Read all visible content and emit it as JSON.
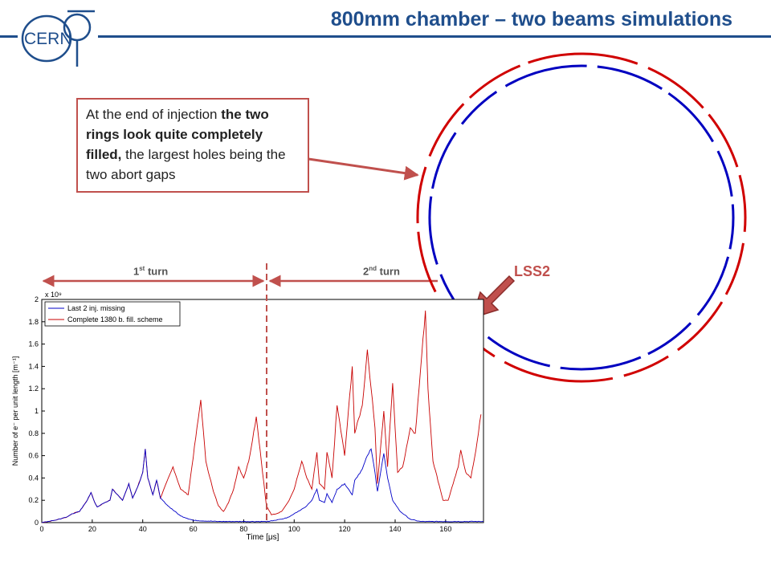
{
  "title": "800mm chamber – two beams simulations",
  "logo_text": "CERN",
  "callout": {
    "p1": "At the end of injection ",
    "b1": "the two rings look quite completely filled,",
    "p2": " the largest holes being the two abort gaps"
  },
  "turn1": {
    "pre": "1",
    "sup": "st",
    "post": " turn"
  },
  "turn2": {
    "pre": "2",
    "sup": "nd",
    "post": " turn"
  },
  "lss2": "LSS2",
  "colors": {
    "title": "#1f4e8c",
    "accent": "#c0504d",
    "blue": "#0000c8",
    "red": "#c80000"
  },
  "chart_data": {
    "type": "line",
    "xlabel": "Time [μs]",
    "ylabel": "Number of e⁻ per unit length [m⁻¹]",
    "y_multiplier": "x 10⁹",
    "xlim": [
      0,
      175
    ],
    "ylim": [
      0,
      2
    ],
    "xticks": [
      0,
      20,
      40,
      60,
      80,
      100,
      120,
      140,
      160
    ],
    "yticks": [
      0,
      0.2,
      0.4,
      0.6,
      0.8,
      1,
      1.2,
      1.4,
      1.6,
      1.8,
      2
    ],
    "grid": false,
    "legend_position": "top-left",
    "series": [
      {
        "name": "Last 2 inj. missing",
        "color": "#0000c8",
        "x": [
          0,
          5,
          10,
          12,
          15,
          18,
          19.5,
          21,
          22,
          25,
          27,
          28,
          32,
          33,
          34.5,
          36,
          38,
          40,
          41,
          42,
          44,
          45.5,
          47,
          50,
          55,
          60,
          70,
          80,
          90,
          92,
          95,
          98,
          100,
          103,
          105,
          107,
          109,
          110,
          112,
          113,
          115,
          117,
          120,
          123,
          124,
          127,
          129,
          130.5,
          132,
          133,
          135.5,
          137,
          139,
          142,
          146,
          150,
          160,
          175
        ],
        "y": [
          0,
          0.02,
          0.05,
          0.08,
          0.1,
          0.2,
          0.27,
          0.18,
          0.14,
          0.18,
          0.2,
          0.3,
          0.2,
          0.26,
          0.35,
          0.22,
          0.32,
          0.45,
          0.66,
          0.4,
          0.25,
          0.38,
          0.22,
          0.15,
          0.06,
          0.02,
          0.01,
          0.01,
          0.01,
          0.02,
          0.03,
          0.05,
          0.08,
          0.12,
          0.15,
          0.2,
          0.3,
          0.2,
          0.18,
          0.26,
          0.18,
          0.3,
          0.35,
          0.25,
          0.38,
          0.48,
          0.6,
          0.66,
          0.45,
          0.28,
          0.62,
          0.4,
          0.2,
          0.1,
          0.03,
          0.01,
          0.01,
          0.01
        ]
      },
      {
        "name": "Complete 1380 b. fill. scheme",
        "color": "#c80000",
        "x": [
          0,
          5,
          10,
          12,
          15,
          18,
          19.5,
          21,
          22,
          25,
          27,
          28,
          32,
          33,
          34.5,
          36,
          38,
          40,
          41,
          42,
          44,
          45.5,
          47,
          52,
          55,
          58,
          63,
          65,
          68,
          70,
          72,
          74,
          76,
          78,
          80,
          82,
          85,
          89,
          91,
          93,
          95,
          98,
          100,
          103,
          105,
          107,
          109,
          110,
          112,
          113,
          115,
          117,
          120,
          123,
          124,
          127,
          129,
          130.5,
          132,
          133,
          135.5,
          137,
          139,
          141,
          143,
          146,
          148,
          150,
          152,
          153,
          155,
          159,
          161,
          163,
          165,
          166,
          168,
          170,
          172,
          174
        ],
        "y": [
          0,
          0.02,
          0.05,
          0.08,
          0.1,
          0.2,
          0.27,
          0.18,
          0.14,
          0.18,
          0.2,
          0.3,
          0.2,
          0.26,
          0.35,
          0.22,
          0.32,
          0.45,
          0.66,
          0.4,
          0.25,
          0.38,
          0.22,
          0.5,
          0.3,
          0.25,
          1.1,
          0.55,
          0.28,
          0.15,
          0.1,
          0.18,
          0.3,
          0.5,
          0.4,
          0.55,
          0.95,
          0.15,
          0.07,
          0.08,
          0.1,
          0.2,
          0.3,
          0.55,
          0.4,
          0.3,
          0.63,
          0.35,
          0.3,
          0.63,
          0.4,
          1.05,
          0.6,
          1.4,
          0.8,
          1.05,
          1.55,
          1.2,
          0.85,
          0.35,
          1.0,
          0.5,
          1.25,
          0.45,
          0.5,
          0.85,
          0.8,
          1.35,
          1.9,
          1.2,
          0.55,
          0.2,
          0.2,
          0.35,
          0.5,
          0.65,
          0.45,
          0.4,
          0.65,
          0.97
        ]
      }
    ]
  }
}
